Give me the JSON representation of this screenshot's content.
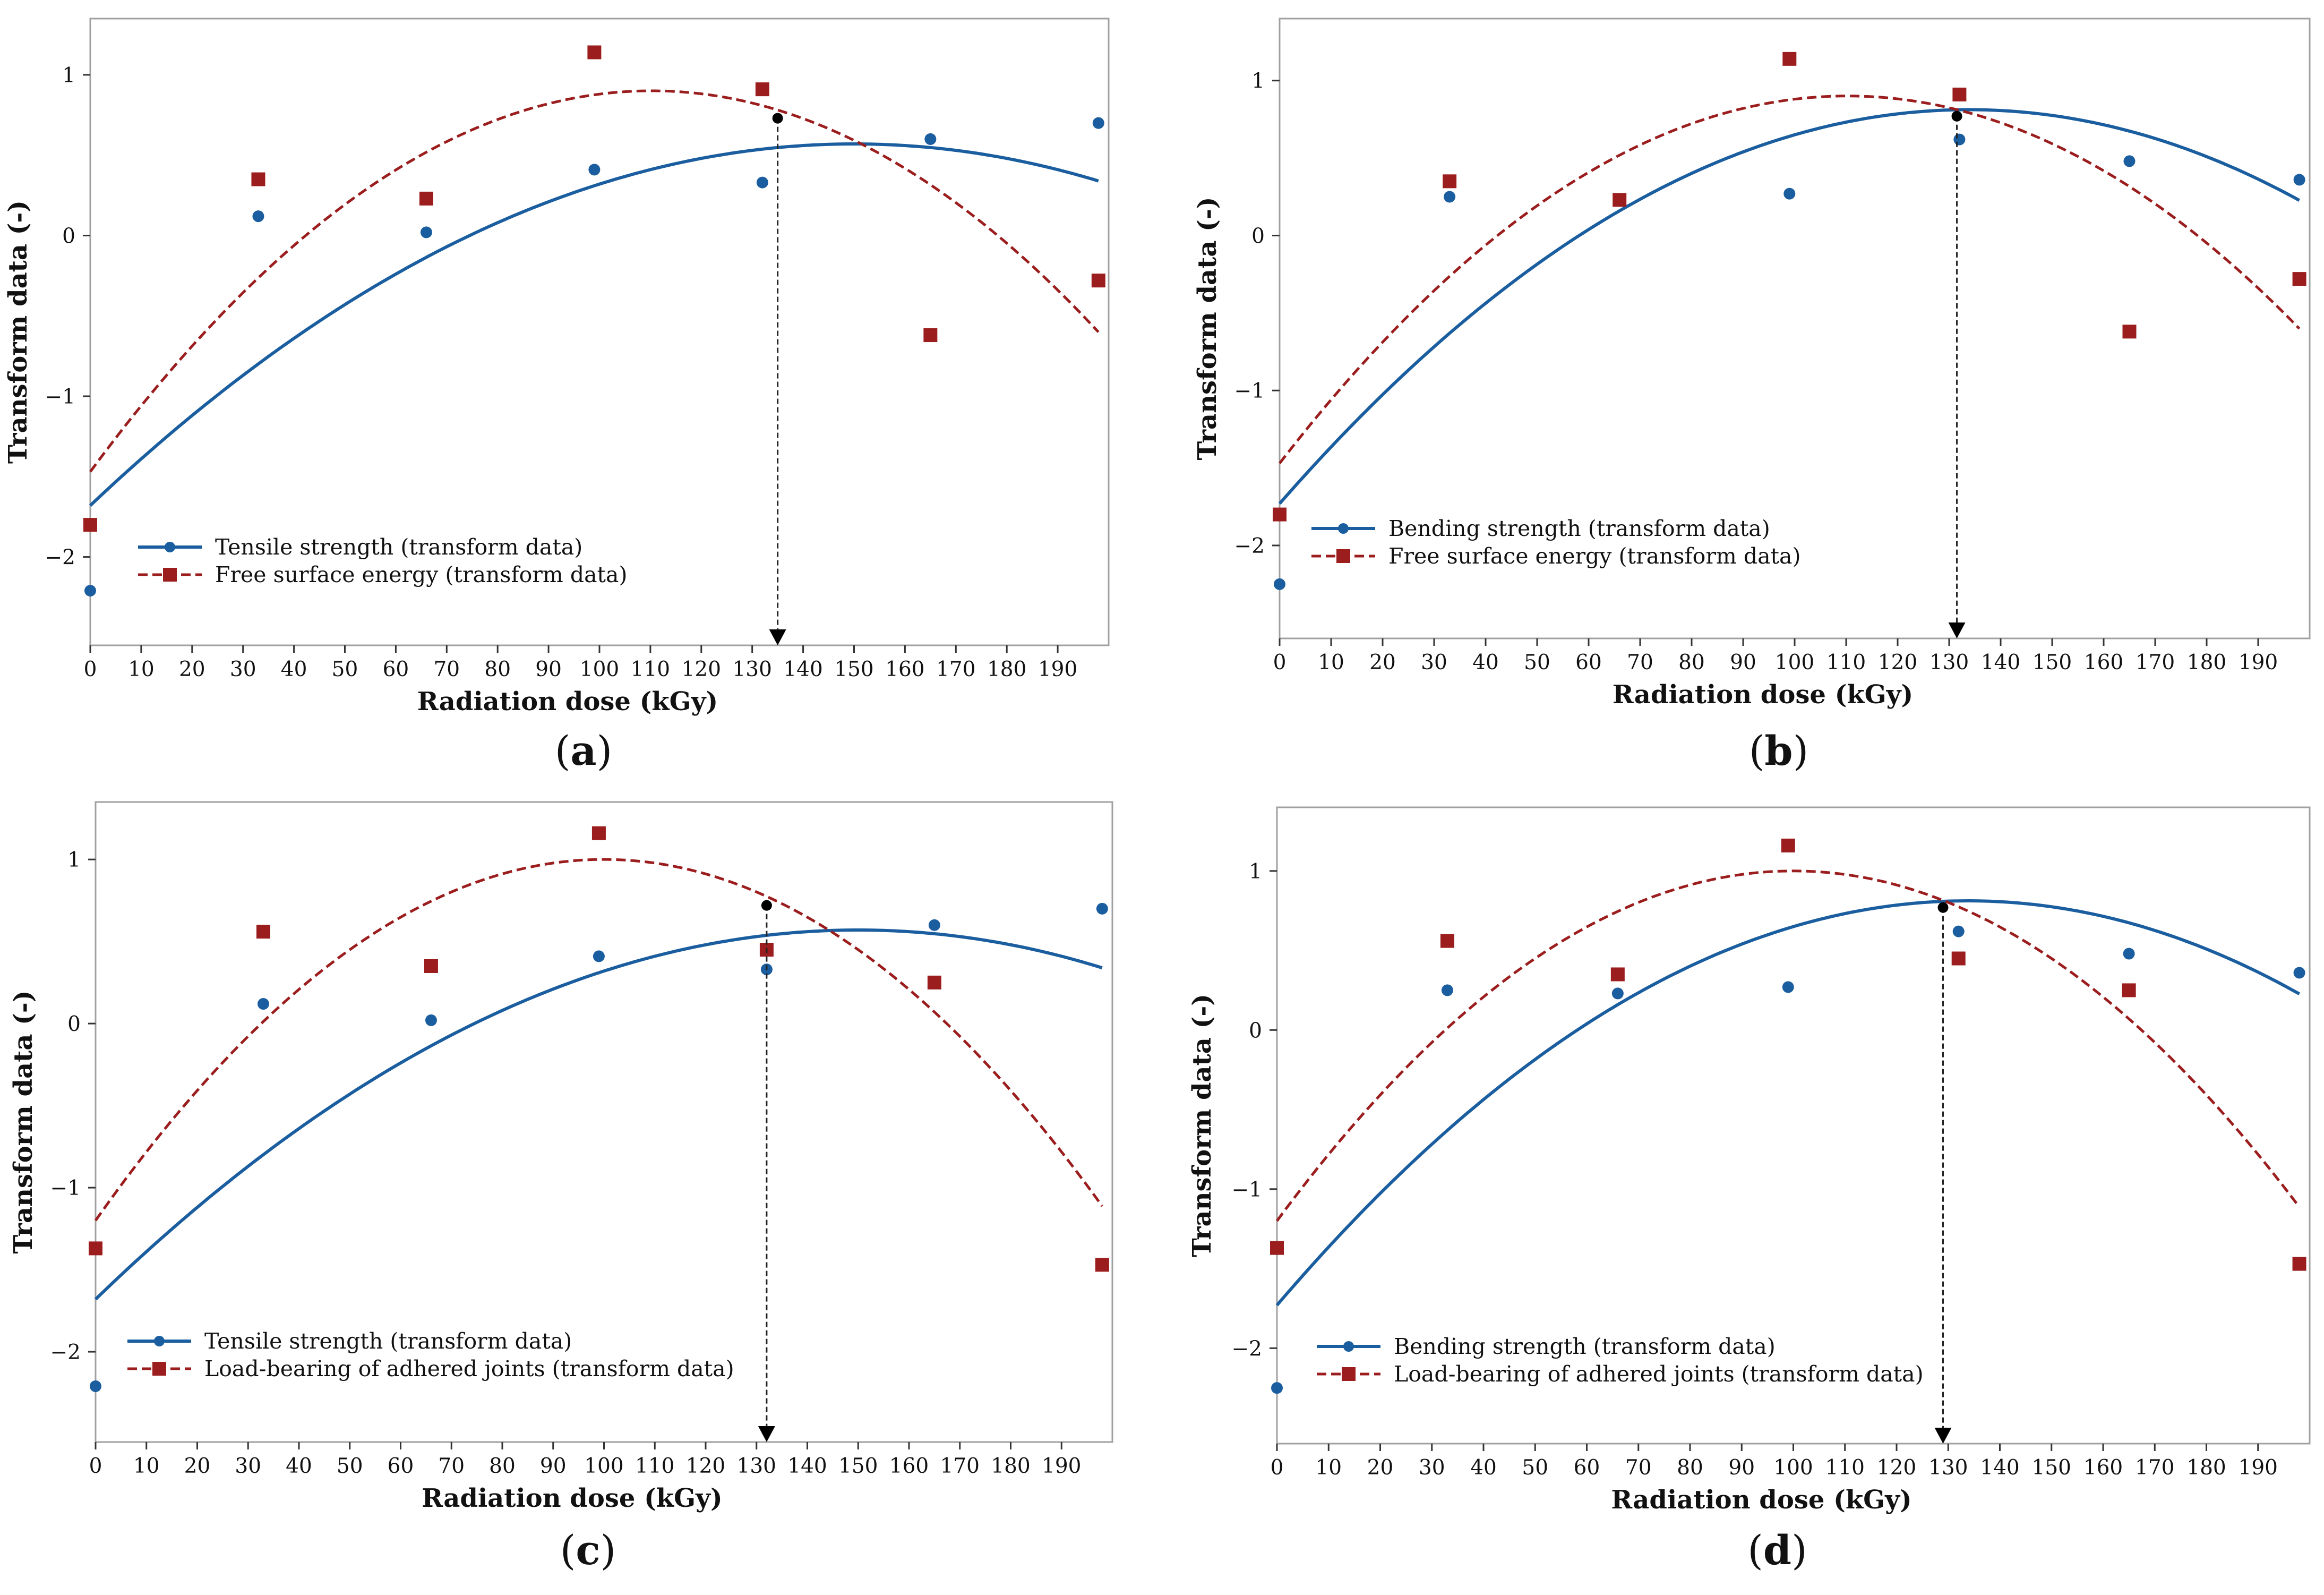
{
  "colors": {
    "blue": "#1b5e9f",
    "red": "#9b1d1d",
    "frame": "#a0a0a0",
    "black": "#000000"
  },
  "chart_data": [
    {
      "type": "scatter",
      "caption_letter": "a",
      "xlabel": "Radiation dose (kGy)",
      "ylabel": "Transform data (-)",
      "xlim": [
        0,
        200
      ],
      "ylim": [
        -2.55,
        1.35
      ],
      "xticks": [
        0,
        10,
        20,
        30,
        40,
        50,
        60,
        70,
        80,
        90,
        100,
        110,
        120,
        130,
        140,
        150,
        160,
        170,
        180,
        190
      ],
      "yticks": [
        -2,
        -1,
        0,
        1
      ],
      "ytick_labels": [
        "−2",
        "−1",
        "0",
        "1"
      ],
      "legend": [
        "Tensile strength (transform data)",
        "Free surface energy (transform data)"
      ],
      "series": [
        {
          "name": "Tensile strength (transform data)",
          "color": "#1b5e9f",
          "marker": "circle",
          "x": [
            0,
            33,
            66,
            99,
            132,
            165,
            198
          ],
          "y": [
            -2.21,
            0.12,
            0.02,
            0.41,
            0.33,
            0.6,
            0.7
          ],
          "fit": [
            -1.68,
            0.03,
            -0.0001
          ]
        },
        {
          "name": "Free surface energy (transform data)",
          "color": "#9b1d1d",
          "marker": "square",
          "x": [
            0,
            33,
            66,
            99,
            132,
            165,
            198
          ],
          "y": [
            -1.8,
            0.35,
            0.23,
            1.14,
            0.91,
            -0.62,
            -0.28
          ],
          "fit": [
            -1.47,
            0.043,
            -0.000195
          ]
        }
      ],
      "optimum": {
        "x": 135,
        "y": 0.73
      }
    },
    {
      "type": "scatter",
      "caption_letter": "b",
      "xlabel": "Radiation dose (kGy)",
      "ylabel": "Transform data (-)",
      "xlim": [
        0,
        200
      ],
      "ylim": [
        -2.6,
        1.4
      ],
      "xticks": [
        0,
        10,
        20,
        30,
        40,
        50,
        60,
        70,
        80,
        90,
        100,
        110,
        120,
        130,
        140,
        150,
        160,
        170,
        180,
        190
      ],
      "yticks": [
        -2,
        -1,
        0,
        1
      ],
      "ytick_labels": [
        "−2",
        "−1",
        "0",
        "1"
      ],
      "legend": [
        "Bending strength (transform data)",
        "Free surface energy (transform data)"
      ],
      "series": [
        {
          "name": "Bending strength (transform data)",
          "color": "#1b5e9f",
          "marker": "circle",
          "x": [
            0,
            33,
            66,
            99,
            132,
            165,
            198
          ],
          "y": [
            -2.25,
            0.25,
            0.23,
            0.27,
            0.62,
            0.48,
            0.36
          ],
          "fit": [
            -1.73,
            0.038,
            -0.000142
          ]
        },
        {
          "name": "Free surface energy (transform data)",
          "color": "#9b1d1d",
          "marker": "square",
          "x": [
            0,
            33,
            66,
            99,
            132,
            165,
            198
          ],
          "y": [
            -1.8,
            0.35,
            0.23,
            1.14,
            0.91,
            -0.62,
            -0.28
          ],
          "fit": [
            -1.47,
            0.043,
            -0.000195
          ]
        }
      ],
      "optimum": {
        "x": 131.5,
        "y": 0.77
      }
    },
    {
      "type": "scatter",
      "caption_letter": "c",
      "xlabel": "Radiation dose (kGy)",
      "ylabel": "Transform data (-)",
      "xlim": [
        0,
        200
      ],
      "ylim": [
        -2.55,
        1.35
      ],
      "xticks": [
        0,
        10,
        20,
        30,
        40,
        50,
        60,
        70,
        80,
        90,
        100,
        110,
        120,
        130,
        140,
        150,
        160,
        170,
        180,
        190
      ],
      "yticks": [
        -2,
        -1,
        0,
        1
      ],
      "ytick_labels": [
        "−2",
        "−1",
        "0",
        "1"
      ],
      "legend": [
        "Tensile strength (transform data)",
        "Load-bearing of adhered joints (transform data)"
      ],
      "series": [
        {
          "name": "Tensile strength (transform data)",
          "color": "#1b5e9f",
          "marker": "circle",
          "x": [
            0,
            33,
            66,
            99,
            132,
            165,
            198
          ],
          "y": [
            -2.21,
            0.12,
            0.02,
            0.41,
            0.33,
            0.6,
            0.7
          ],
          "fit": [
            -1.68,
            0.03,
            -0.0001
          ]
        },
        {
          "name": "Load-bearing of adhered joints (transform data)",
          "color": "#9b1d1d",
          "marker": "square",
          "x": [
            0,
            33,
            66,
            99,
            132,
            165,
            198
          ],
          "y": [
            -1.37,
            0.56,
            0.35,
            1.16,
            0.45,
            0.25,
            -1.47
          ],
          "fit": [
            -1.2,
            0.044,
            -0.00022
          ]
        }
      ],
      "optimum": {
        "x": 132,
        "y": 0.72
      }
    },
    {
      "type": "scatter",
      "caption_letter": "d",
      "xlabel": "Radiation dose (kGy)",
      "ylabel": "Transform data (-)",
      "xlim": [
        0,
        200
      ],
      "ylim": [
        -2.6,
        1.4
      ],
      "xticks": [
        0,
        10,
        20,
        30,
        40,
        50,
        60,
        70,
        80,
        90,
        100,
        110,
        120,
        130,
        140,
        150,
        160,
        170,
        180,
        190
      ],
      "yticks": [
        -2,
        -1,
        0,
        1
      ],
      "ytick_labels": [
        "−2",
        "−1",
        "0",
        "1"
      ],
      "legend": [
        "Bending strength (transform data)",
        "Load-bearing of adhered joints (transform data)"
      ],
      "series": [
        {
          "name": "Bending strength (transform data)",
          "color": "#1b5e9f",
          "marker": "circle",
          "x": [
            0,
            33,
            66,
            99,
            132,
            165,
            198
          ],
          "y": [
            -2.25,
            0.25,
            0.23,
            0.27,
            0.62,
            0.48,
            0.36
          ],
          "fit": [
            -1.73,
            0.038,
            -0.000142
          ]
        },
        {
          "name": "Load-bearing of adhered joints (transform data)",
          "color": "#9b1d1d",
          "marker": "square",
          "x": [
            0,
            33,
            66,
            99,
            132,
            165,
            198
          ],
          "y": [
            -1.37,
            0.56,
            0.35,
            1.16,
            0.45,
            0.25,
            -1.47
          ],
          "fit": [
            -1.2,
            0.044,
            -0.00022
          ]
        }
      ],
      "optimum": {
        "x": 129,
        "y": 0.77
      }
    }
  ]
}
